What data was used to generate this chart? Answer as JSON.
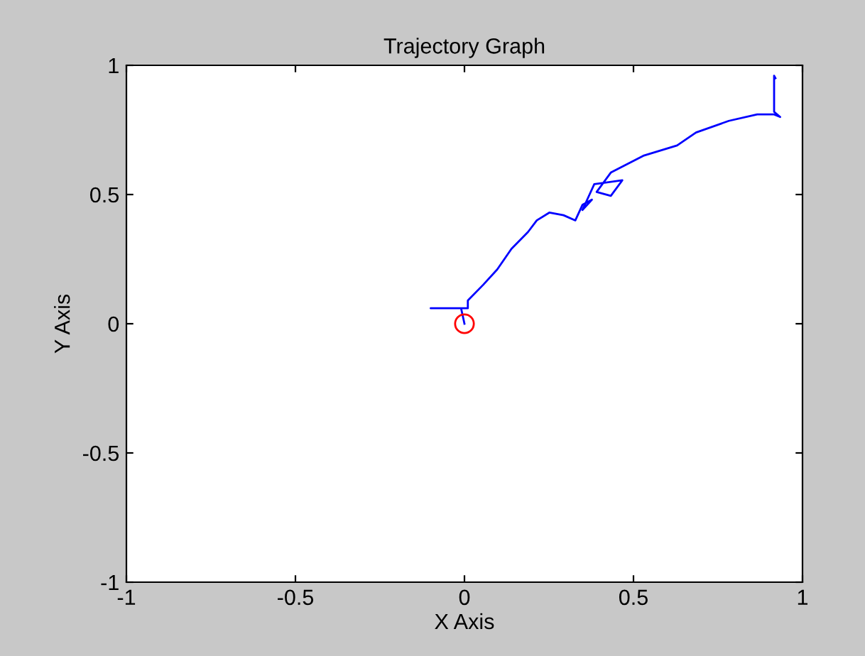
{
  "chart_data": {
    "type": "line",
    "title": "Trajectory Graph",
    "xlabel": "X Axis",
    "ylabel": "Y Axis",
    "xlim": [
      -1,
      1
    ],
    "ylim": [
      -1,
      1
    ],
    "xticks": [
      -1,
      -0.5,
      0,
      0.5,
      1
    ],
    "yticks": [
      -1,
      -0.5,
      0,
      0.5,
      1
    ],
    "grid": false,
    "legend": false,
    "series": [
      {
        "color": "#0000ff",
        "x": [
          0,
          -0.01,
          -0.1,
          0.01,
          0.01,
          0.055,
          0.097,
          0.139,
          0.188,
          0.214,
          0.251,
          0.293,
          0.328,
          0.349,
          0.377,
          0.349,
          0.37,
          0.384,
          0.467,
          0.433,
          0.391,
          0.433,
          0.529,
          0.629,
          0.685,
          0.782,
          0.866,
          0.916,
          0.934,
          0.916,
          0.916,
          0.92
        ],
        "values": [
          0,
          0.06,
          0.06,
          0.06,
          0.09,
          0.15,
          0.21,
          0.29,
          0.355,
          0.4,
          0.43,
          0.42,
          0.4,
          0.46,
          0.48,
          0.44,
          0.5,
          0.54,
          0.555,
          0.495,
          0.51,
          0.585,
          0.65,
          0.69,
          0.74,
          0.785,
          0.81,
          0.81,
          0.8,
          0.82,
          0.96,
          0.95
        ]
      },
      {
        "type": "scatter",
        "color": "#ff0000",
        "marker": "circle",
        "x": [
          0
        ],
        "values": [
          0
        ]
      }
    ]
  }
}
